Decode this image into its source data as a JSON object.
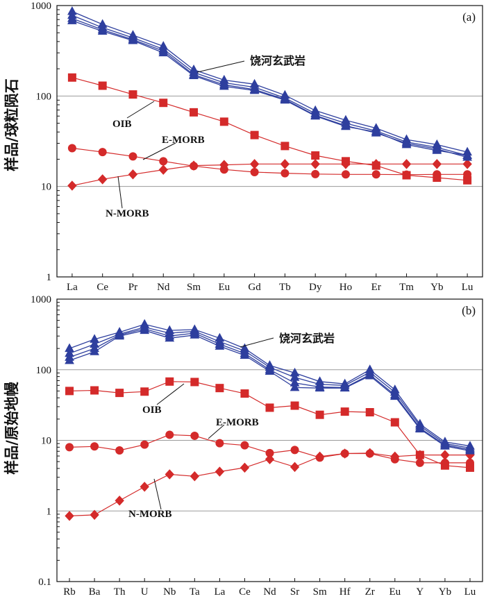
{
  "chart_data": [
    {
      "id": "a",
      "type": "line",
      "panel_label": "(a)",
      "ylabel": "样品/球粒陨石",
      "yscale": "log",
      "ylim": [
        1,
        1000
      ],
      "yticks": [
        "1",
        "10",
        "100",
        "1000"
      ],
      "grid": "horizontal",
      "categories": [
        "La",
        "Ce",
        "Pr",
        "Nd",
        "Sm",
        "Eu",
        "Gd",
        "Tb",
        "Dy",
        "Ho",
        "Er",
        "Tm",
        "Yb",
        "Lu"
      ],
      "series": [
        {
          "name": "饶河玄武岩-1",
          "group": "basalt",
          "marker": "triangle",
          "color": "#2e3f9e",
          "values": [
            860,
            620,
            470,
            355,
            195,
            150,
            135,
            102,
            69,
            54,
            44,
            33,
            29,
            24
          ]
        },
        {
          "name": "饶河玄武岩-2",
          "group": "basalt",
          "marker": "triangle",
          "color": "#2e3f9e",
          "values": [
            780,
            570,
            440,
            330,
            182,
            140,
            125,
            95,
            64,
            50,
            41,
            31,
            27,
            22
          ]
        },
        {
          "name": "饶河玄武岩-3",
          "group": "basalt",
          "marker": "triangle",
          "color": "#2e3f9e",
          "values": [
            720,
            540,
            420,
            315,
            172,
            133,
            118,
            92,
            61,
            47,
            39,
            30,
            26,
            21
          ]
        },
        {
          "name": "饶河玄武岩-4",
          "group": "basalt",
          "marker": "triangle",
          "color": "#2e3f9e",
          "values": [
            680,
            520,
            410,
            300,
            168,
            128,
            115,
            90,
            60,
            46,
            40,
            29,
            25,
            22
          ]
        },
        {
          "name": "OIB",
          "group": "ref",
          "marker": "square",
          "color": "#d42a2a",
          "values": [
            160,
            130,
            104,
            84,
            66,
            52,
            37,
            28,
            22,
            19,
            17,
            13.3,
            12.5,
            11.7
          ]
        },
        {
          "name": "E-MORB",
          "group": "ref",
          "marker": "circle",
          "color": "#d42a2a",
          "values": [
            26.5,
            24,
            21.5,
            19,
            16.8,
            15.4,
            14.4,
            14.0,
            13.7,
            13.6,
            13.6,
            13.5,
            13.6,
            13.6
          ]
        },
        {
          "name": "N-MORB",
          "group": "ref",
          "marker": "diamond",
          "color": "#d42a2a",
          "values": [
            10.2,
            12,
            13.6,
            15.3,
            17,
            17.3,
            17.7,
            17.7,
            17.7,
            17.7,
            17.7,
            17.7,
            17.7,
            17.7
          ]
        }
      ],
      "annotations": [
        {
          "text": "饶河玄武岩",
          "target_series": "饶河玄武岩-1",
          "target_category": "Sm"
        },
        {
          "text": "OIB",
          "target_series": "OIB",
          "target_category": "Nd"
        },
        {
          "text": "E-MORB",
          "target_series": "E-MORB",
          "target_category": "Pr"
        },
        {
          "text": "N-MORB",
          "target_series": "N-MORB",
          "target_category": "Ce"
        }
      ]
    },
    {
      "id": "b",
      "type": "line",
      "panel_label": "(b)",
      "ylabel": "样品/原始地幔",
      "yscale": "log",
      "ylim": [
        0.1,
        1000
      ],
      "yticks": [
        "0.1",
        "1",
        "10",
        "100",
        "1000"
      ],
      "grid": "horizontal",
      "categories": [
        "Rb",
        "Ba",
        "Th",
        "U",
        "Nb",
        "Ta",
        "La",
        "Ce",
        "Nd",
        "Sr",
        "Sm",
        "Hf",
        "Zr",
        "Eu",
        "Y",
        "Yb",
        "Lu"
      ],
      "series": [
        {
          "name": "饶河玄武岩-1",
          "group": "basalt",
          "marker": "triangle",
          "color": "#2e3f9e",
          "values": [
            200,
            270,
            340,
            440,
            360,
            370,
            280,
            200,
            115,
            90,
            68,
            63,
            100,
            52,
            17,
            9.5,
            8.3
          ]
        },
        {
          "name": "饶河玄武岩-2",
          "group": "basalt",
          "marker": "triangle",
          "color": "#2e3f9e",
          "values": [
            170,
            230,
            320,
            400,
            330,
            350,
            250,
            185,
            108,
            78,
            62,
            60,
            92,
            48,
            16,
            9.0,
            7.8
          ]
        },
        {
          "name": "饶河玄武岩-3",
          "group": "basalt",
          "marker": "triangle",
          "color": "#2e3f9e",
          "values": [
            150,
            200,
            310,
            380,
            300,
            330,
            230,
            170,
            100,
            65,
            57,
            56,
            85,
            44,
            15,
            8.6,
            7.4
          ]
        },
        {
          "name": "饶河玄武岩-4",
          "group": "basalt",
          "marker": "triangle",
          "color": "#2e3f9e",
          "values": [
            135,
            180,
            300,
            360,
            280,
            310,
            215,
            160,
            95,
            56,
            55,
            55,
            82,
            42,
            14.5,
            8.3,
            7.1
          ]
        },
        {
          "name": "OIB",
          "group": "ref",
          "marker": "square",
          "color": "#d42a2a",
          "values": [
            50,
            51,
            47,
            49,
            68,
            67,
            55,
            46,
            29,
            31,
            23,
            25.5,
            25,
            18,
            6.2,
            4.4,
            4.1
          ]
        },
        {
          "name": "E-MORB",
          "group": "ref",
          "marker": "circle",
          "color": "#d42a2a",
          "values": [
            8,
            8.2,
            7.2,
            8.7,
            12,
            11.6,
            9.1,
            8.5,
            6.6,
            7.3,
            5.7,
            6.5,
            6.5,
            5.4,
            4.8,
            4.8,
            4.8
          ]
        },
        {
          "name": "N-MORB",
          "group": "ref",
          "marker": "diamond",
          "color": "#d42a2a",
          "values": [
            0.85,
            0.88,
            1.4,
            2.2,
            3.3,
            3.1,
            3.6,
            4.1,
            5.4,
            4.2,
            5.9,
            6.5,
            6.6,
            5.9,
            6.2,
            6.2,
            6.2
          ]
        }
      ],
      "annotations": [
        {
          "text": "饶河玄武岩",
          "target_series": "饶河玄武岩-1",
          "target_category": "Ce"
        },
        {
          "text": "OIB",
          "target_series": "OIB",
          "target_category": "Ta"
        },
        {
          "text": "E-MORB",
          "target_series": "E-MORB",
          "target_category": "Ta"
        },
        {
          "text": "N-MORB",
          "target_series": "N-MORB",
          "target_category": "U"
        }
      ]
    }
  ]
}
